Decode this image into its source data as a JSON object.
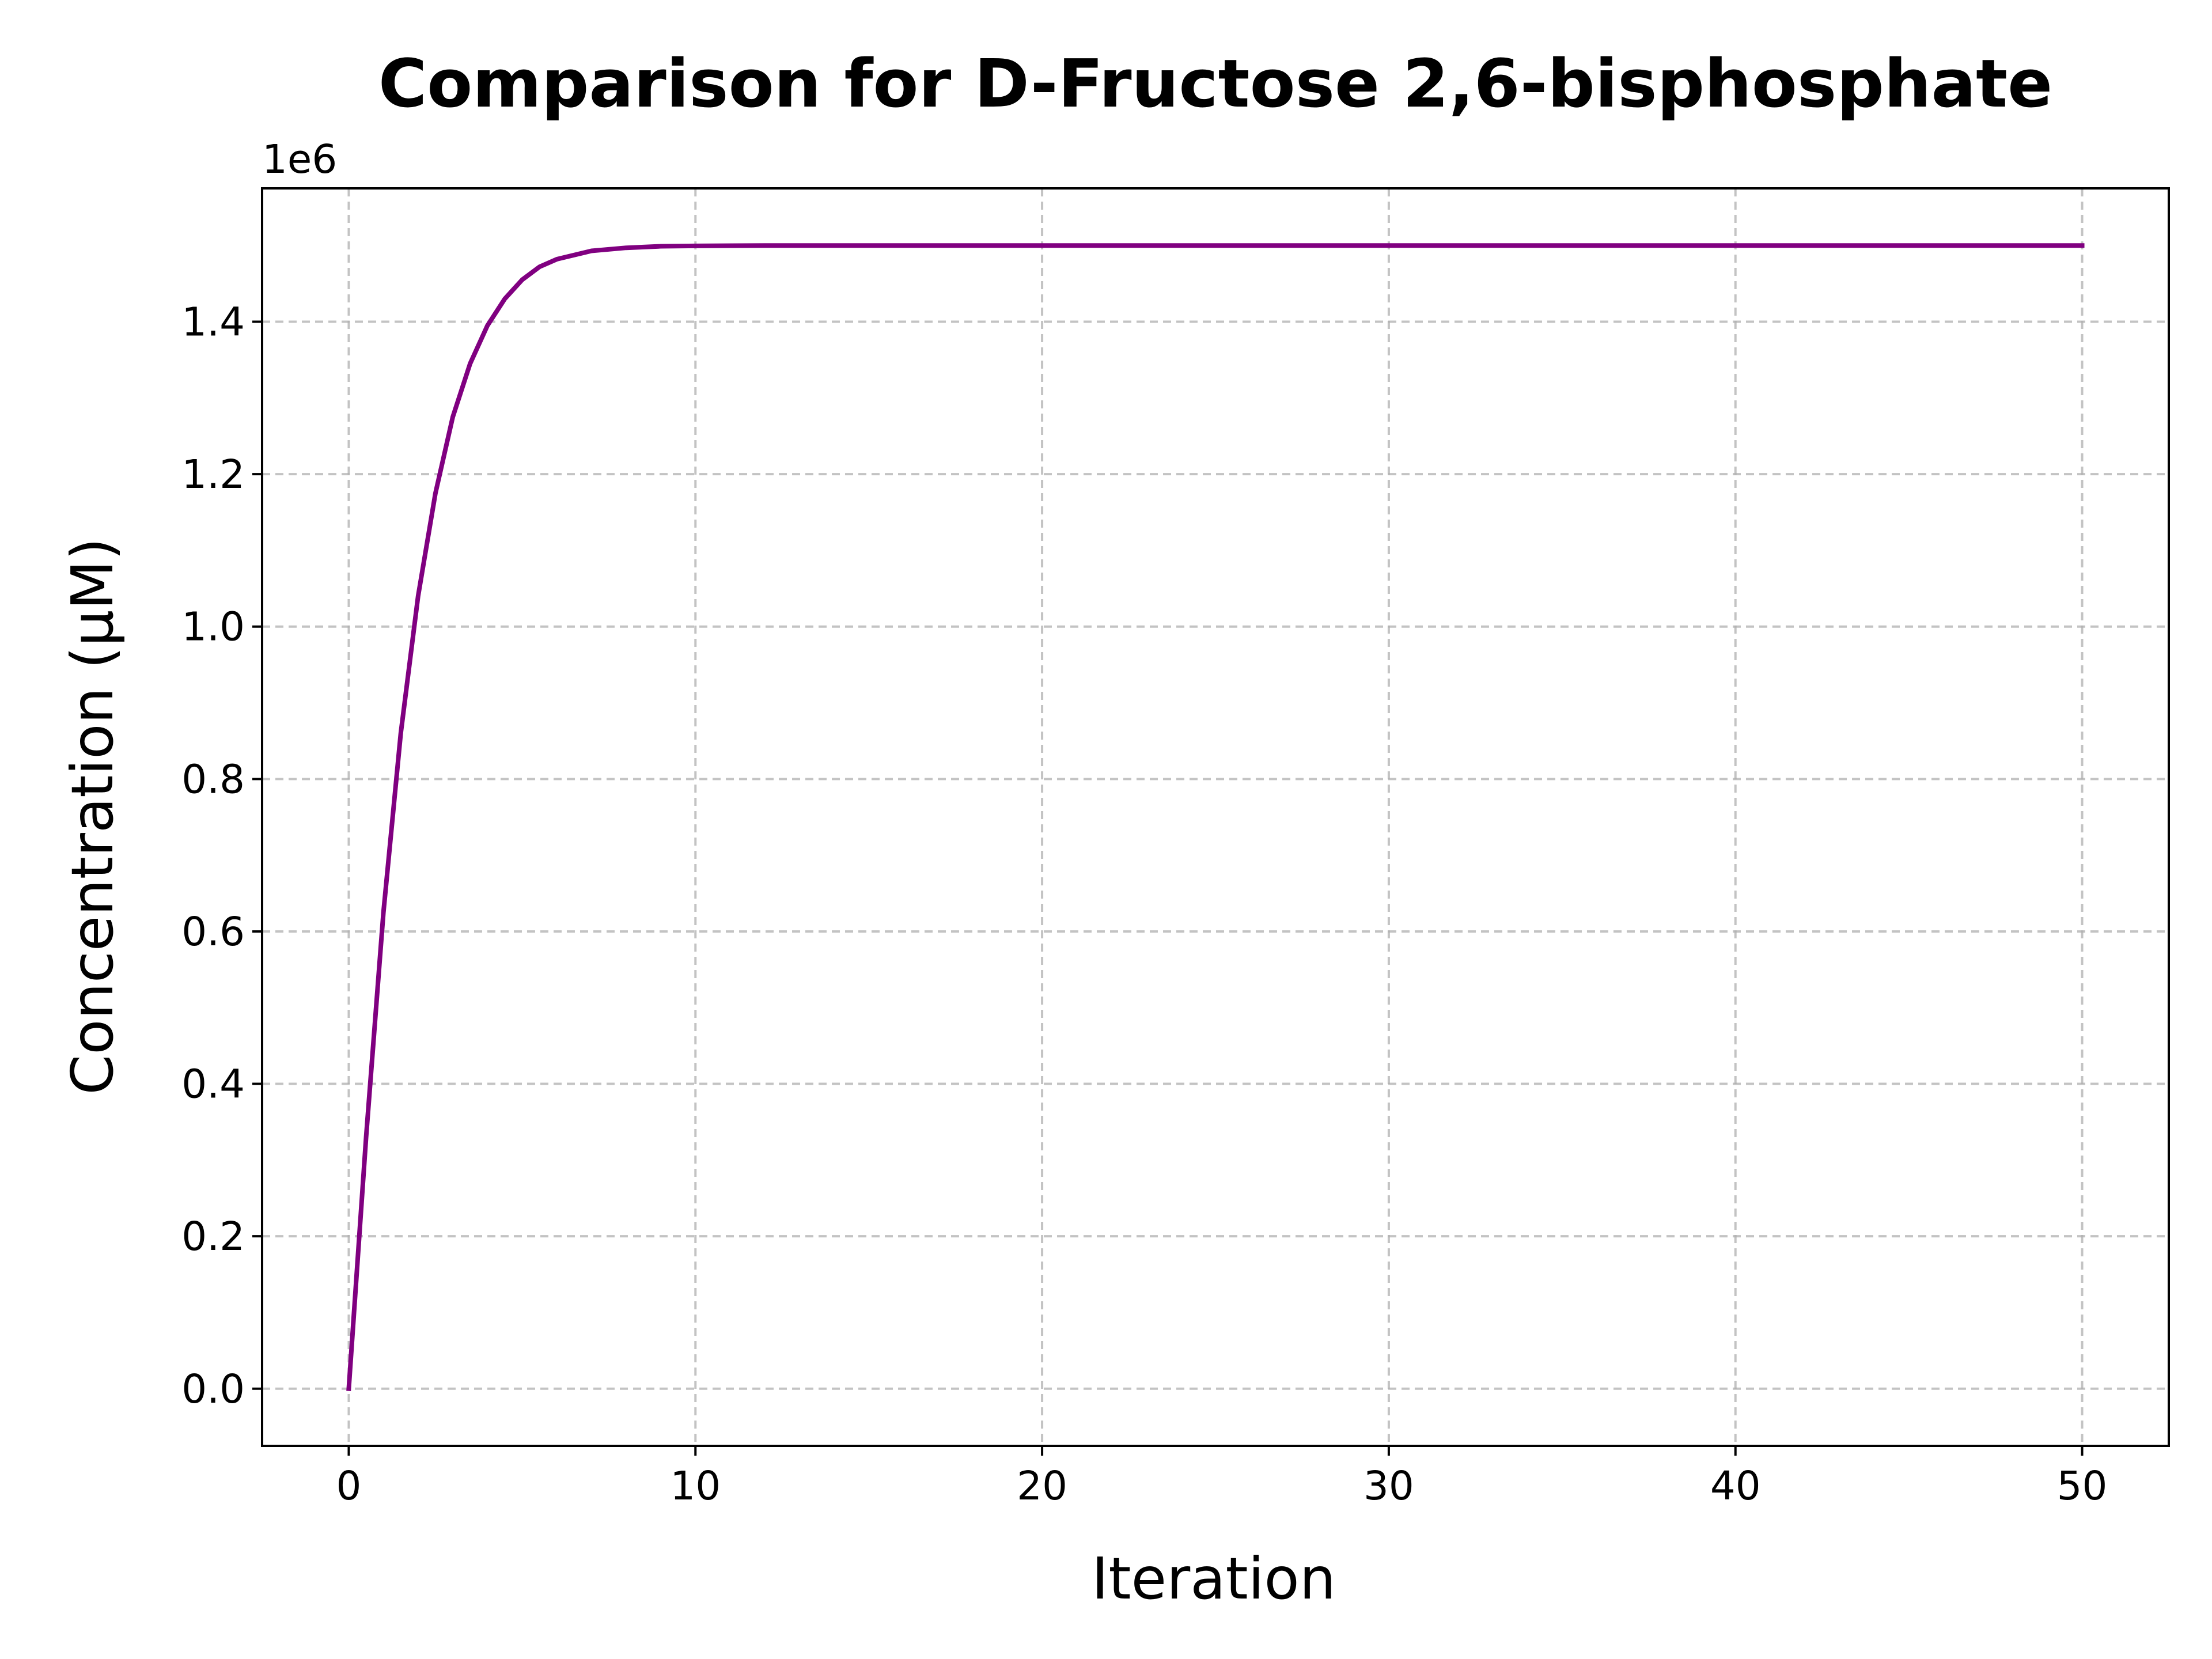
{
  "chart_data": {
    "type": "line",
    "title": "Comparison for D-Fructose 2,6-bisphosphate",
    "xlabel": "Iteration",
    "ylabel": "Concentration (μM)",
    "y_offset_label": "1e6",
    "xlim": [
      -2.5,
      52.5
    ],
    "ylim": [
      -75000,
      1575000
    ],
    "x_ticks": [
      0,
      10,
      20,
      30,
      40,
      50
    ],
    "x_tick_labels": [
      "0",
      "10",
      "20",
      "30",
      "40",
      "50"
    ],
    "y_ticks": [
      0,
      200000,
      400000,
      600000,
      800000,
      1000000,
      1200000,
      1400000
    ],
    "y_tick_labels": [
      "0.0",
      "0.2",
      "0.4",
      "0.6",
      "0.8",
      "1.0",
      "1.2",
      "1.4"
    ],
    "grid": true,
    "series": [
      {
        "color": "#800080",
        "x": [
          0,
          0.5,
          1,
          1.5,
          2,
          2.5,
          3,
          3.5,
          4,
          4.5,
          5,
          5.5,
          6,
          7,
          8,
          9,
          10,
          12,
          15,
          20,
          25,
          30,
          35,
          40,
          45,
          50
        ],
        "y": [
          0,
          330000,
          625000,
          860000,
          1040000,
          1175000,
          1275000,
          1345000,
          1395000,
          1430000,
          1455000,
          1472000,
          1482000,
          1493000,
          1497000,
          1499000,
          1499500,
          1500000,
          1500000,
          1500000,
          1500000,
          1500000,
          1500000,
          1500000,
          1500000,
          1500000
        ]
      }
    ]
  }
}
